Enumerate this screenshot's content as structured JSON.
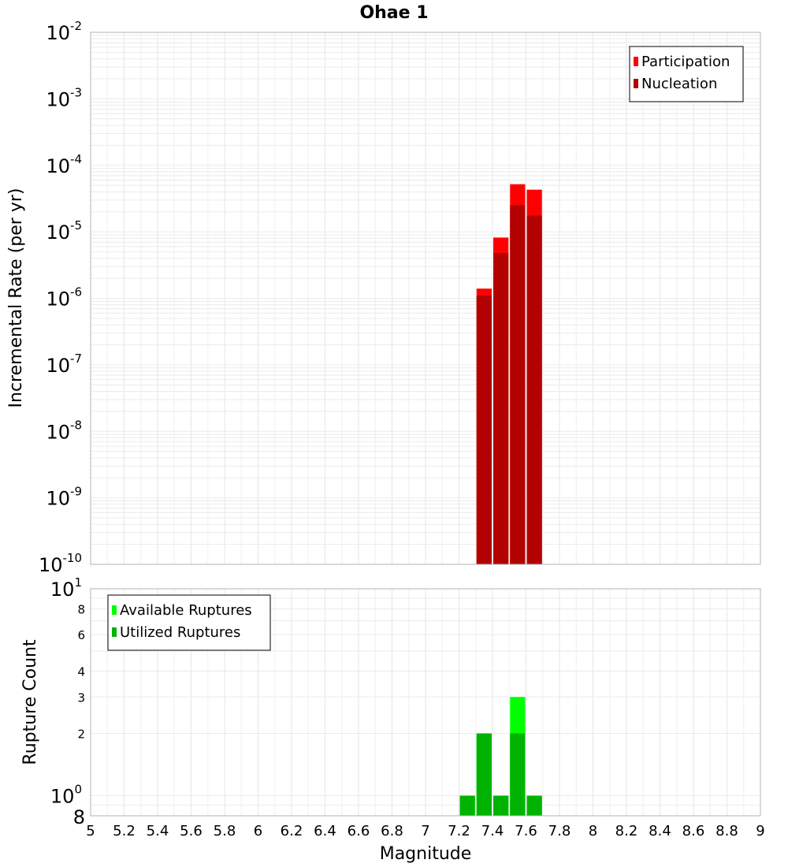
{
  "chart_data": [
    {
      "type": "bar",
      "panel": "top",
      "title": "Ohae 1",
      "xlabel": "",
      "ylabel": "Incremental Rate (per yr)",
      "yscale": "log",
      "xlim": [
        5,
        9
      ],
      "ylim": [
        1e-10,
        0.01
      ],
      "grid": true,
      "bar_width": 0.1,
      "legend_position": "top-right",
      "y_tick_labels": [
        {
          "base": "10",
          "exp": "-10",
          "value": 1e-10
        },
        {
          "base": "10",
          "exp": "-9",
          "value": 1e-09
        },
        {
          "base": "10",
          "exp": "-8",
          "value": 1e-08
        },
        {
          "base": "10",
          "exp": "-7",
          "value": 1e-07
        },
        {
          "base": "10",
          "exp": "-6",
          "value": 1e-06
        },
        {
          "base": "10",
          "exp": "-5",
          "value": 1e-05
        },
        {
          "base": "10",
          "exp": "-4",
          "value": 0.0001
        },
        {
          "base": "10",
          "exp": "-3",
          "value": 0.001
        },
        {
          "base": "10",
          "exp": "-2",
          "value": 0.01
        }
      ],
      "series": [
        {
          "name": "Participation",
          "color": "#ff0000",
          "points": [
            {
              "x": 7.35,
              "y": 1.4e-06
            },
            {
              "x": 7.45,
              "y": 8.2e-06
            },
            {
              "x": 7.55,
              "y": 5.2e-05
            },
            {
              "x": 7.65,
              "y": 4.3e-05
            }
          ]
        },
        {
          "name": "Nucleation",
          "color": "#b30000",
          "points": [
            {
              "x": 7.35,
              "y": 1.1e-06
            },
            {
              "x": 7.45,
              "y": 4.8e-06
            },
            {
              "x": 7.55,
              "y": 2.5e-05
            },
            {
              "x": 7.65,
              "y": 1.75e-05
            }
          ]
        }
      ]
    },
    {
      "type": "bar",
      "panel": "bottom",
      "xlabel": "Magnitude",
      "ylabel": "Rupture Count",
      "yscale": "log",
      "xlim": [
        5,
        9
      ],
      "ylim": [
        0.8,
        10
      ],
      "grid": true,
      "bar_width": 0.1,
      "legend_position": "top-left",
      "x_ticks": [
        "5",
        "5.2",
        "5.4",
        "5.6",
        "5.8",
        "6",
        "6.2",
        "6.4",
        "6.6",
        "6.8",
        "7",
        "7.2",
        "7.4",
        "7.6",
        "7.8",
        "8",
        "8.2",
        "8.4",
        "8.6",
        "8.8",
        "9"
      ],
      "y_tick_labels": [
        {
          "base": "10",
          "exp": "1",
          "value": 10
        },
        {
          "base": "10",
          "exp": "0",
          "value": 1
        }
      ],
      "y_minor_labels": [
        {
          "label": "8",
          "value": 8
        },
        {
          "label": "6",
          "value": 6
        },
        {
          "label": "4",
          "value": 4
        },
        {
          "label": "3",
          "value": 3
        },
        {
          "label": "2",
          "value": 2
        },
        {
          "label": "8",
          "value": 0.8
        }
      ],
      "series": [
        {
          "name": "Available Ruptures",
          "color": "#00ff00",
          "points": [
            {
              "x": 7.25,
              "y": 1
            },
            {
              "x": 7.35,
              "y": 2
            },
            {
              "x": 7.45,
              "y": 1
            },
            {
              "x": 7.55,
              "y": 3
            },
            {
              "x": 7.65,
              "y": 1
            }
          ]
        },
        {
          "name": "Utilized Ruptures",
          "color": "#00b300",
          "points": [
            {
              "x": 7.25,
              "y": 1
            },
            {
              "x": 7.35,
              "y": 2
            },
            {
              "x": 7.45,
              "y": 1
            },
            {
              "x": 7.55,
              "y": 2
            },
            {
              "x": 7.65,
              "y": 1
            }
          ]
        }
      ]
    }
  ]
}
